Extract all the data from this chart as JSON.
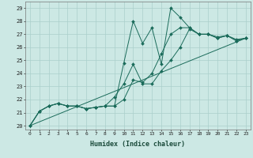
{
  "title": "",
  "xlabel": "Humidex (Indice chaleur)",
  "ylabel": "",
  "background_color": "#cce8e4",
  "grid_color": "#aacfcb",
  "line_color": "#1a6b5a",
  "xlim": [
    -0.5,
    23.5
  ],
  "ylim": [
    19.7,
    29.5
  ],
  "xtick_labels": [
    "0",
    "1",
    "2",
    "3",
    "4",
    "5",
    "6",
    "7",
    "8",
    "9",
    "10",
    "11",
    "12",
    "13",
    "14",
    "15",
    "16",
    "17",
    "18",
    "19",
    "20",
    "21",
    "22",
    "23"
  ],
  "ytick_labels": [
    "20",
    "21",
    "22",
    "23",
    "24",
    "25",
    "26",
    "27",
    "28",
    "29"
  ],
  "lines": [
    {
      "x": [
        0,
        1,
        2,
        3,
        4,
        5,
        6,
        7,
        8,
        9,
        10,
        11,
        12,
        13,
        14,
        15,
        16,
        17,
        18,
        19,
        20,
        21,
        22,
        23
      ],
      "y": [
        20.0,
        21.1,
        21.5,
        21.7,
        21.5,
        21.5,
        21.3,
        21.4,
        21.5,
        21.5,
        24.8,
        28.0,
        26.3,
        27.5,
        24.7,
        29.0,
        28.3,
        27.5,
        27.0,
        27.0,
        26.7,
        26.9,
        26.5,
        26.7
      ],
      "marker": "D",
      "markersize": 2.0,
      "has_marker": true
    },
    {
      "x": [
        0,
        1,
        2,
        3,
        4,
        5,
        6,
        7,
        8,
        9,
        10,
        11,
        12,
        13,
        14,
        15,
        16,
        17,
        18,
        19,
        20,
        21,
        22,
        23
      ],
      "y": [
        20.0,
        21.1,
        21.5,
        21.7,
        21.5,
        21.5,
        21.3,
        21.4,
        21.5,
        22.2,
        23.2,
        24.7,
        23.2,
        23.2,
        24.2,
        25.0,
        26.0,
        27.4,
        27.0,
        27.0,
        26.8,
        26.9,
        26.6,
        26.7
      ],
      "marker": "D",
      "markersize": 2.0,
      "has_marker": true
    },
    {
      "x": [
        0,
        1,
        2,
        3,
        4,
        5,
        6,
        7,
        8,
        9,
        10,
        11,
        12,
        13,
        14,
        15,
        16,
        17,
        18,
        19,
        20,
        21,
        22,
        23
      ],
      "y": [
        20.0,
        21.1,
        21.5,
        21.7,
        21.5,
        21.5,
        21.3,
        21.4,
        21.5,
        21.5,
        22.0,
        23.5,
        23.3,
        24.0,
        25.5,
        27.0,
        27.5,
        27.5,
        27.0,
        27.0,
        26.7,
        26.9,
        26.5,
        26.7
      ],
      "marker": "D",
      "markersize": 2.0,
      "has_marker": true
    },
    {
      "x": [
        0,
        23
      ],
      "y": [
        20.0,
        26.7
      ],
      "marker": null,
      "markersize": 0,
      "has_marker": false
    }
  ]
}
